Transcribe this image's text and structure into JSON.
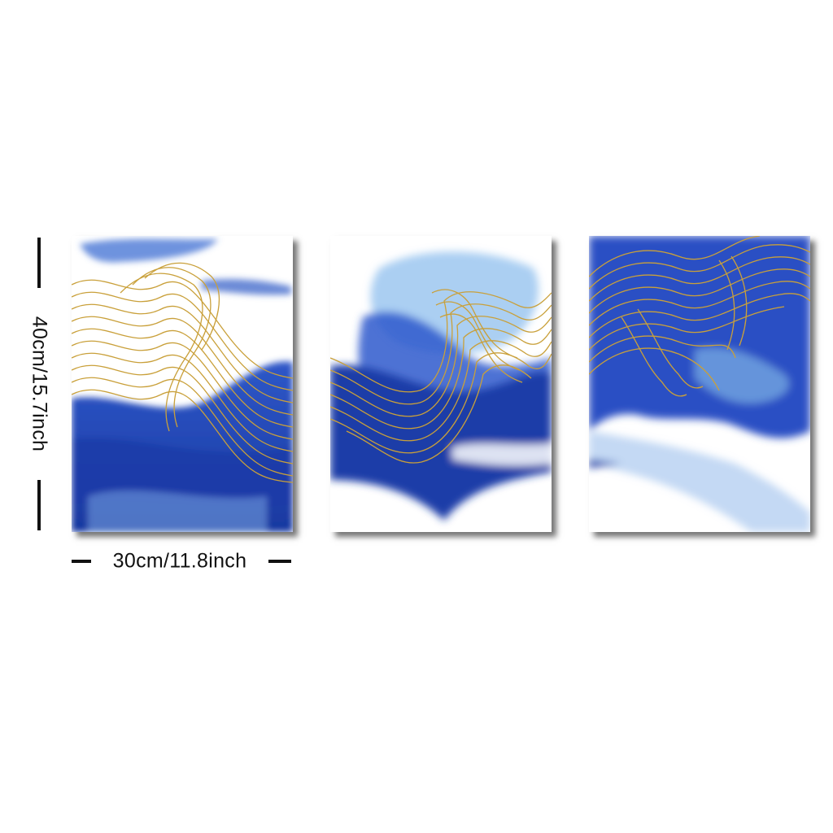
{
  "dimensions": {
    "height_label": "40cm/15.7inch",
    "width_label": "30cm/11.8inch"
  },
  "colors": {
    "background": "#ffffff",
    "ink_deep": "#1f3fa8",
    "ink_mid": "#2f5fd0",
    "ink_light": "#7fb0e6",
    "gold": "#c9a03a"
  },
  "artwork": {
    "style": "blue watercolor ink with gold line waves",
    "panel_count": 3
  }
}
